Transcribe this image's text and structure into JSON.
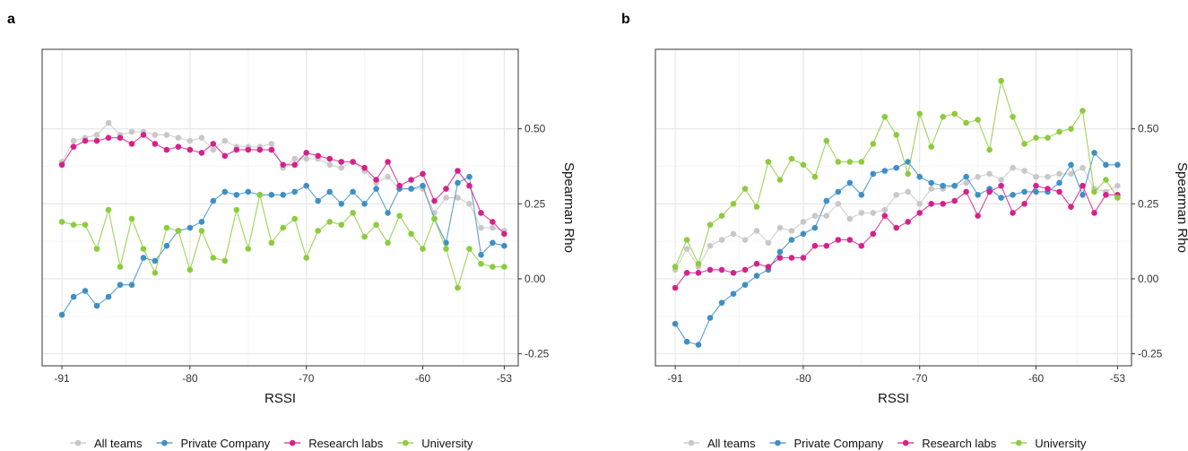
{
  "chart_data": [
    {
      "panel": "a",
      "type": "line",
      "xlabel": "RSSI",
      "ylabel": "Spearman Rho",
      "xlim": [
        -92.7,
        -51.8
      ],
      "ylim": [
        -0.29,
        0.765
      ],
      "xticks": [
        -91,
        -80,
        -70,
        -60,
        -53
      ],
      "yticks": [
        -0.25,
        0.0,
        0.25,
        0.5
      ],
      "ytick_labels": [
        "-0.25",
        "0.00",
        "0.25",
        "0.50"
      ],
      "grid": true,
      "y_axis_position": "right",
      "legend_position": "bottom",
      "x": [
        -91,
        -90,
        -89,
        -88,
        -87,
        -86,
        -85,
        -84,
        -83,
        -82,
        -81,
        -80,
        -79,
        -78,
        -77,
        -76,
        -75,
        -74,
        -73,
        -72,
        -71,
        -70,
        -69,
        -68,
        -67,
        -66,
        -65,
        -64,
        -63,
        -62,
        -61,
        -60,
        -59,
        -58,
        -57,
        -56,
        -55,
        -54,
        -53
      ],
      "series": [
        {
          "name": "All teams",
          "color": "#c8c8c8",
          "values": [
            0.39,
            0.46,
            0.47,
            0.48,
            0.52,
            0.48,
            0.49,
            0.49,
            0.48,
            0.48,
            0.47,
            0.46,
            0.47,
            0.43,
            0.46,
            0.44,
            0.44,
            0.44,
            0.45,
            0.37,
            0.4,
            0.4,
            0.4,
            0.38,
            0.37,
            0.39,
            0.36,
            0.32,
            0.34,
            0.3,
            0.3,
            0.3,
            0.22,
            0.27,
            0.27,
            0.25,
            0.17,
            0.17,
            0.16
          ]
        },
        {
          "name": "Private Company",
          "color": "#3e8fc5",
          "values": [
            -0.12,
            -0.06,
            -0.04,
            -0.09,
            -0.06,
            -0.02,
            -0.02,
            0.07,
            0.06,
            0.11,
            0.16,
            0.17,
            0.19,
            0.26,
            0.29,
            0.28,
            0.29,
            0.28,
            0.28,
            0.28,
            0.29,
            0.31,
            0.26,
            0.29,
            0.25,
            0.29,
            0.25,
            0.3,
            0.22,
            0.3,
            0.3,
            0.31,
            0.2,
            0.12,
            0.32,
            0.34,
            0.08,
            0.12,
            0.11
          ]
        },
        {
          "name": "Research labs",
          "color": "#d6218c",
          "values": [
            0.38,
            0.44,
            0.46,
            0.46,
            0.47,
            0.47,
            0.45,
            0.48,
            0.45,
            0.43,
            0.44,
            0.43,
            0.42,
            0.45,
            0.41,
            0.43,
            0.43,
            0.43,
            0.43,
            0.38,
            0.38,
            0.42,
            0.41,
            0.4,
            0.39,
            0.39,
            0.37,
            0.33,
            0.39,
            0.31,
            0.33,
            0.35,
            0.26,
            0.3,
            0.36,
            0.31,
            0.22,
            0.19,
            0.15
          ]
        },
        {
          "name": "University",
          "color": "#8ccc3c",
          "values": [
            0.19,
            0.18,
            0.18,
            0.1,
            0.23,
            0.04,
            0.2,
            0.1,
            0.02,
            0.17,
            0.16,
            0.03,
            0.16,
            0.07,
            0.06,
            0.23,
            0.1,
            0.28,
            0.12,
            0.17,
            0.2,
            0.07,
            0.16,
            0.19,
            0.18,
            0.22,
            0.14,
            0.18,
            0.12,
            0.21,
            0.15,
            0.1,
            0.2,
            0.1,
            -0.03,
            0.1,
            0.05,
            0.04,
            0.04
          ]
        }
      ]
    },
    {
      "panel": "b",
      "type": "line",
      "xlabel": "RSSI",
      "ylabel": "Spearman Rho",
      "xlim": [
        -92.7,
        -51.8
      ],
      "ylim": [
        -0.29,
        0.765
      ],
      "xticks": [
        -91,
        -80,
        -70,
        -60,
        -53
      ],
      "yticks": [
        -0.25,
        0.0,
        0.25,
        0.5
      ],
      "ytick_labels": [
        "-0.25",
        "0.00",
        "0.25",
        "0.50"
      ],
      "grid": true,
      "y_axis_position": "right",
      "legend_position": "bottom",
      "x": [
        -91,
        -90,
        -89,
        -88,
        -87,
        -86,
        -85,
        -84,
        -83,
        -82,
        -81,
        -80,
        -79,
        -78,
        -77,
        -76,
        -75,
        -74,
        -73,
        -72,
        -71,
        -70,
        -69,
        -68,
        -67,
        -66,
        -65,
        -64,
        -63,
        -62,
        -61,
        -60,
        -59,
        -58,
        -57,
        -56,
        -55,
        -54,
        -53
      ],
      "series": [
        {
          "name": "All teams",
          "color": "#c8c8c8",
          "values": [
            0.03,
            0.1,
            0.04,
            0.11,
            0.13,
            0.15,
            0.13,
            0.16,
            0.12,
            0.17,
            0.16,
            0.19,
            0.21,
            0.21,
            0.25,
            0.2,
            0.22,
            0.22,
            0.23,
            0.28,
            0.29,
            0.25,
            0.3,
            0.3,
            0.31,
            0.32,
            0.34,
            0.35,
            0.33,
            0.37,
            0.36,
            0.34,
            0.34,
            0.35,
            0.35,
            0.37,
            0.3,
            0.29,
            0.31
          ]
        },
        {
          "name": "Private Company",
          "color": "#3e8fc5",
          "values": [
            -0.15,
            -0.21,
            -0.22,
            -0.13,
            -0.08,
            -0.05,
            -0.02,
            0.01,
            0.03,
            0.09,
            0.13,
            0.15,
            0.17,
            0.26,
            0.29,
            0.32,
            0.28,
            0.35,
            0.36,
            0.37,
            0.39,
            0.34,
            0.32,
            0.31,
            0.31,
            0.34,
            0.28,
            0.3,
            0.27,
            0.28,
            0.29,
            0.29,
            0.29,
            0.32,
            0.38,
            0.28,
            0.42,
            0.38,
            0.38
          ]
        },
        {
          "name": "Research labs",
          "color": "#d6218c",
          "values": [
            -0.03,
            0.02,
            0.02,
            0.03,
            0.03,
            0.02,
            0.03,
            0.05,
            0.04,
            0.07,
            0.07,
            0.07,
            0.11,
            0.11,
            0.13,
            0.13,
            0.11,
            0.15,
            0.21,
            0.17,
            0.19,
            0.22,
            0.25,
            0.25,
            0.26,
            0.29,
            0.21,
            0.29,
            0.31,
            0.22,
            0.25,
            0.31,
            0.3,
            0.29,
            0.24,
            0.31,
            0.22,
            0.28,
            0.28
          ]
        },
        {
          "name": "University",
          "color": "#8ccc3c",
          "values": [
            0.04,
            0.13,
            0.05,
            0.18,
            0.21,
            0.25,
            0.3,
            0.24,
            0.39,
            0.33,
            0.4,
            0.38,
            0.34,
            0.46,
            0.39,
            0.39,
            0.39,
            0.45,
            0.54,
            0.48,
            0.35,
            0.55,
            0.44,
            0.54,
            0.55,
            0.52,
            0.53,
            0.43,
            0.66,
            0.54,
            0.45,
            0.47,
            0.47,
            0.49,
            0.5,
            0.56,
            0.29,
            0.33,
            0.27
          ]
        }
      ]
    }
  ],
  "legend": {
    "items": [
      "All teams",
      "Private Company",
      "Research labs",
      "University"
    ]
  }
}
